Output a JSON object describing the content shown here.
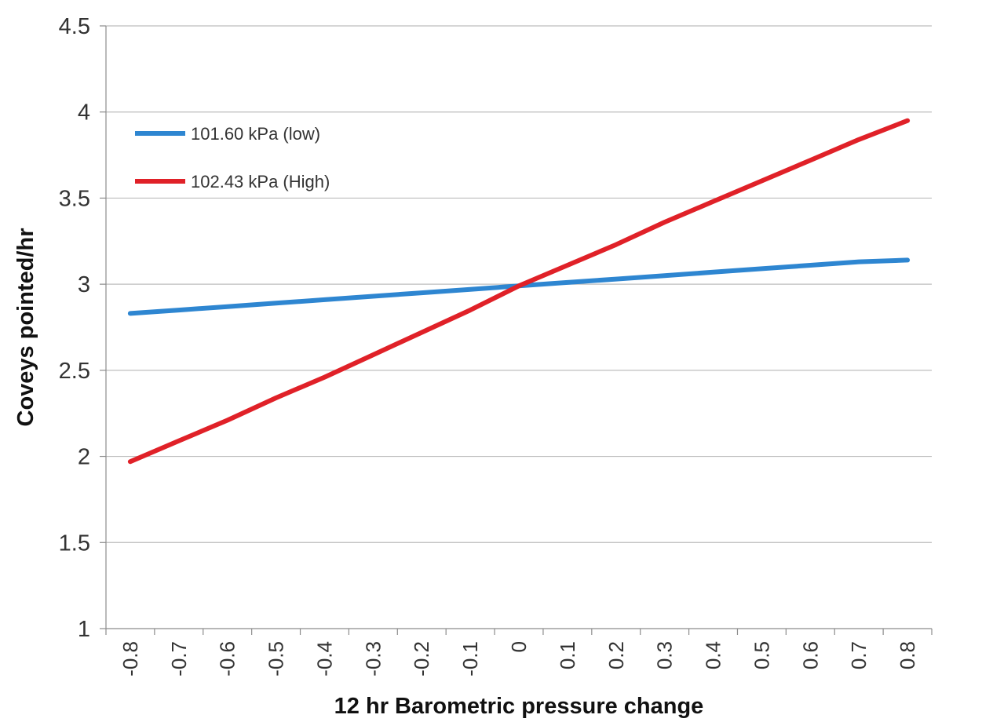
{
  "chart_data": {
    "type": "line",
    "title": "",
    "xlabel": "12 hr Barometric pressure change",
    "ylabel": "Coveys pointed/hr",
    "x": [
      -0.8,
      -0.7,
      -0.6,
      -0.5,
      -0.4,
      -0.3,
      -0.2,
      -0.1,
      0,
      0.1,
      0.2,
      0.3,
      0.4,
      0.5,
      0.6,
      0.7,
      0.8
    ],
    "x_tick_labels": [
      "-0.8",
      "-0.7",
      "-0.6",
      "-0.5",
      "-0.4",
      "-0.3",
      "-0.2",
      "-0.1",
      "0",
      "0.1",
      "0.2",
      "0.3",
      "0.4",
      "0.5",
      "0.6",
      "0.7",
      "0.8"
    ],
    "y_ticks": [
      1,
      1.5,
      2,
      2.5,
      3,
      3.5,
      4,
      4.5
    ],
    "y_tick_labels": [
      "1",
      "1.5",
      "2",
      "2.5",
      "3",
      "3.5",
      "4",
      "4.5"
    ],
    "ylim": [
      1,
      4.5
    ],
    "grid": true,
    "legend_position": "top-left",
    "series": [
      {
        "name": "101.60 kPa (low)",
        "color": "#2e86d1",
        "values": [
          2.83,
          2.85,
          2.87,
          2.89,
          2.91,
          2.93,
          2.95,
          2.97,
          2.99,
          3.01,
          3.03,
          3.05,
          3.07,
          3.09,
          3.11,
          3.13,
          3.14
        ]
      },
      {
        "name": "102.43 kPa (High)",
        "color": "#e02128",
        "values": [
          1.97,
          2.09,
          2.21,
          2.34,
          2.46,
          2.59,
          2.72,
          2.85,
          2.99,
          3.11,
          3.23,
          3.36,
          3.48,
          3.6,
          3.72,
          3.84,
          3.95
        ]
      }
    ]
  }
}
